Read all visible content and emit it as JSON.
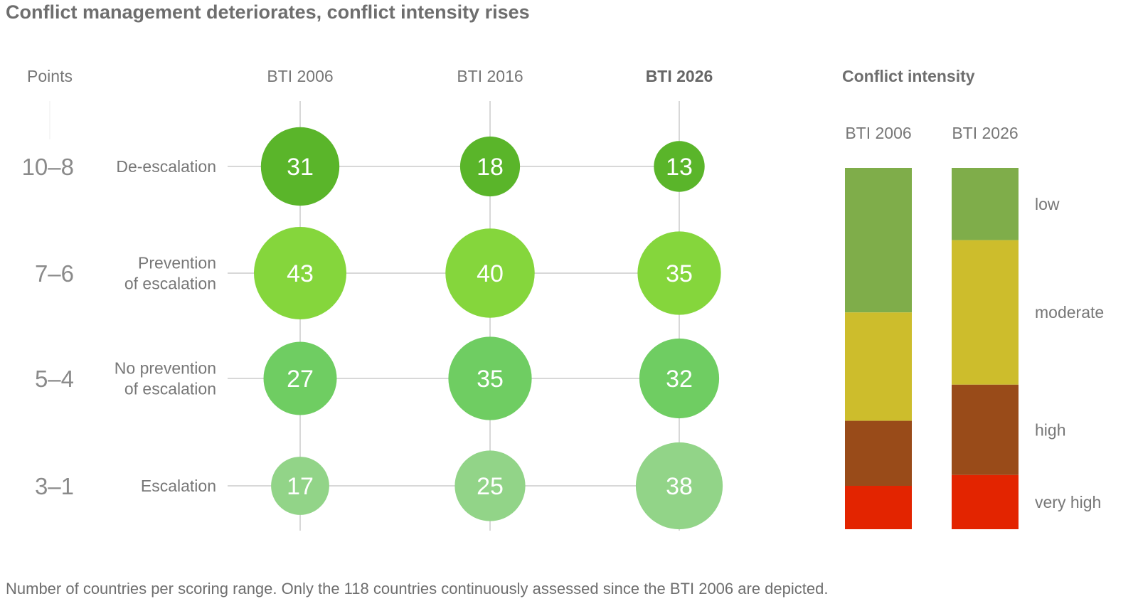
{
  "title": "Conflict management deteriorates, conflict intensity rises",
  "footnote": "Number of countries per scoring range. Only the 118 countries continuously assessed since the BTI 2006 are depicted.",
  "chart_data": [
    {
      "type": "bubble-matrix",
      "y_axis_title": "Points",
      "columns": [
        "BTI 2006",
        "BTI 2016",
        "BTI 2026"
      ],
      "highlighted_column": "BTI 2026",
      "rows": [
        {
          "points": "10–8",
          "label": "De-escalation",
          "color": "#5ab52a",
          "values": [
            31,
            18,
            13
          ]
        },
        {
          "points": "7–6",
          "label": "Prevention of escalation",
          "color": "#85d63c",
          "values": [
            43,
            40,
            35
          ]
        },
        {
          "points": "5–4",
          "label": "No prevention of escalation",
          "color": "#6fcd62",
          "values": [
            27,
            35,
            32
          ]
        },
        {
          "points": "3–1",
          "label": "Escalation",
          "color": "#92d488",
          "values": [
            17,
            25,
            38
          ]
        }
      ]
    },
    {
      "type": "stacked-bar",
      "title": "Conflict intensity",
      "categories": [
        "BTI 2006",
        "BTI 2026"
      ],
      "series": [
        {
          "name": "low",
          "color": "#7fad4a",
          "values": [
            40,
            20
          ]
        },
        {
          "name": "moderate",
          "color": "#cdbd2c",
          "values": [
            30,
            40
          ]
        },
        {
          "name": "high",
          "color": "#994b19",
          "values": [
            18,
            25
          ]
        },
        {
          "name": "very high",
          "color": "#e32400",
          "values": [
            12,
            15
          ]
        }
      ],
      "ylim": [
        0,
        100
      ]
    }
  ]
}
